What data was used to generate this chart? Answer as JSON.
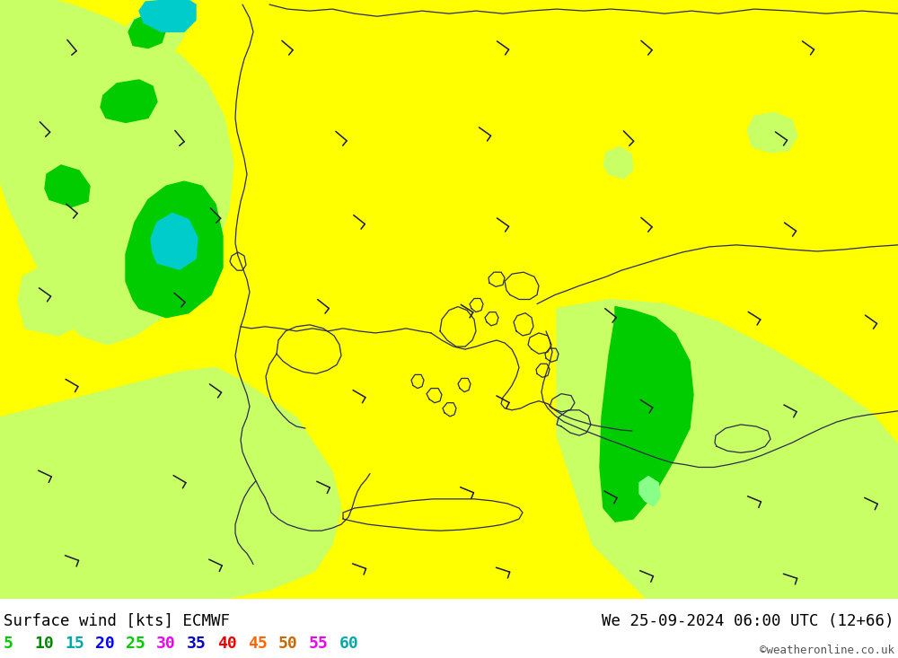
{
  "title_left": "Surface wind [kts] ECMWF",
  "title_right": "We 25-09-2024 06:00 UTC (12+66)",
  "credit": "©weatheronline.co.uk",
  "legend_labels": [
    "5",
    "10",
    "15",
    "20",
    "25",
    "30",
    "35",
    "40",
    "45",
    "50",
    "55",
    "60"
  ],
  "legend_text_colors": [
    "#00cc00",
    "#008800",
    "#00aaaa",
    "#0000ff",
    "#00cc00",
    "#ee00ee",
    "#0000cc",
    "#ee0000",
    "#ff6600",
    "#cc6600",
    "#ee00ee",
    "#00aaaa"
  ],
  "color_yellow": "#ffff00",
  "color_lime": "#c8ff64",
  "color_green": "#00cc00",
  "color_dark_green": "#008800",
  "color_cyan": "#00cccc",
  "color_coast": "#333355",
  "figsize": [
    10.0,
    7.33
  ]
}
